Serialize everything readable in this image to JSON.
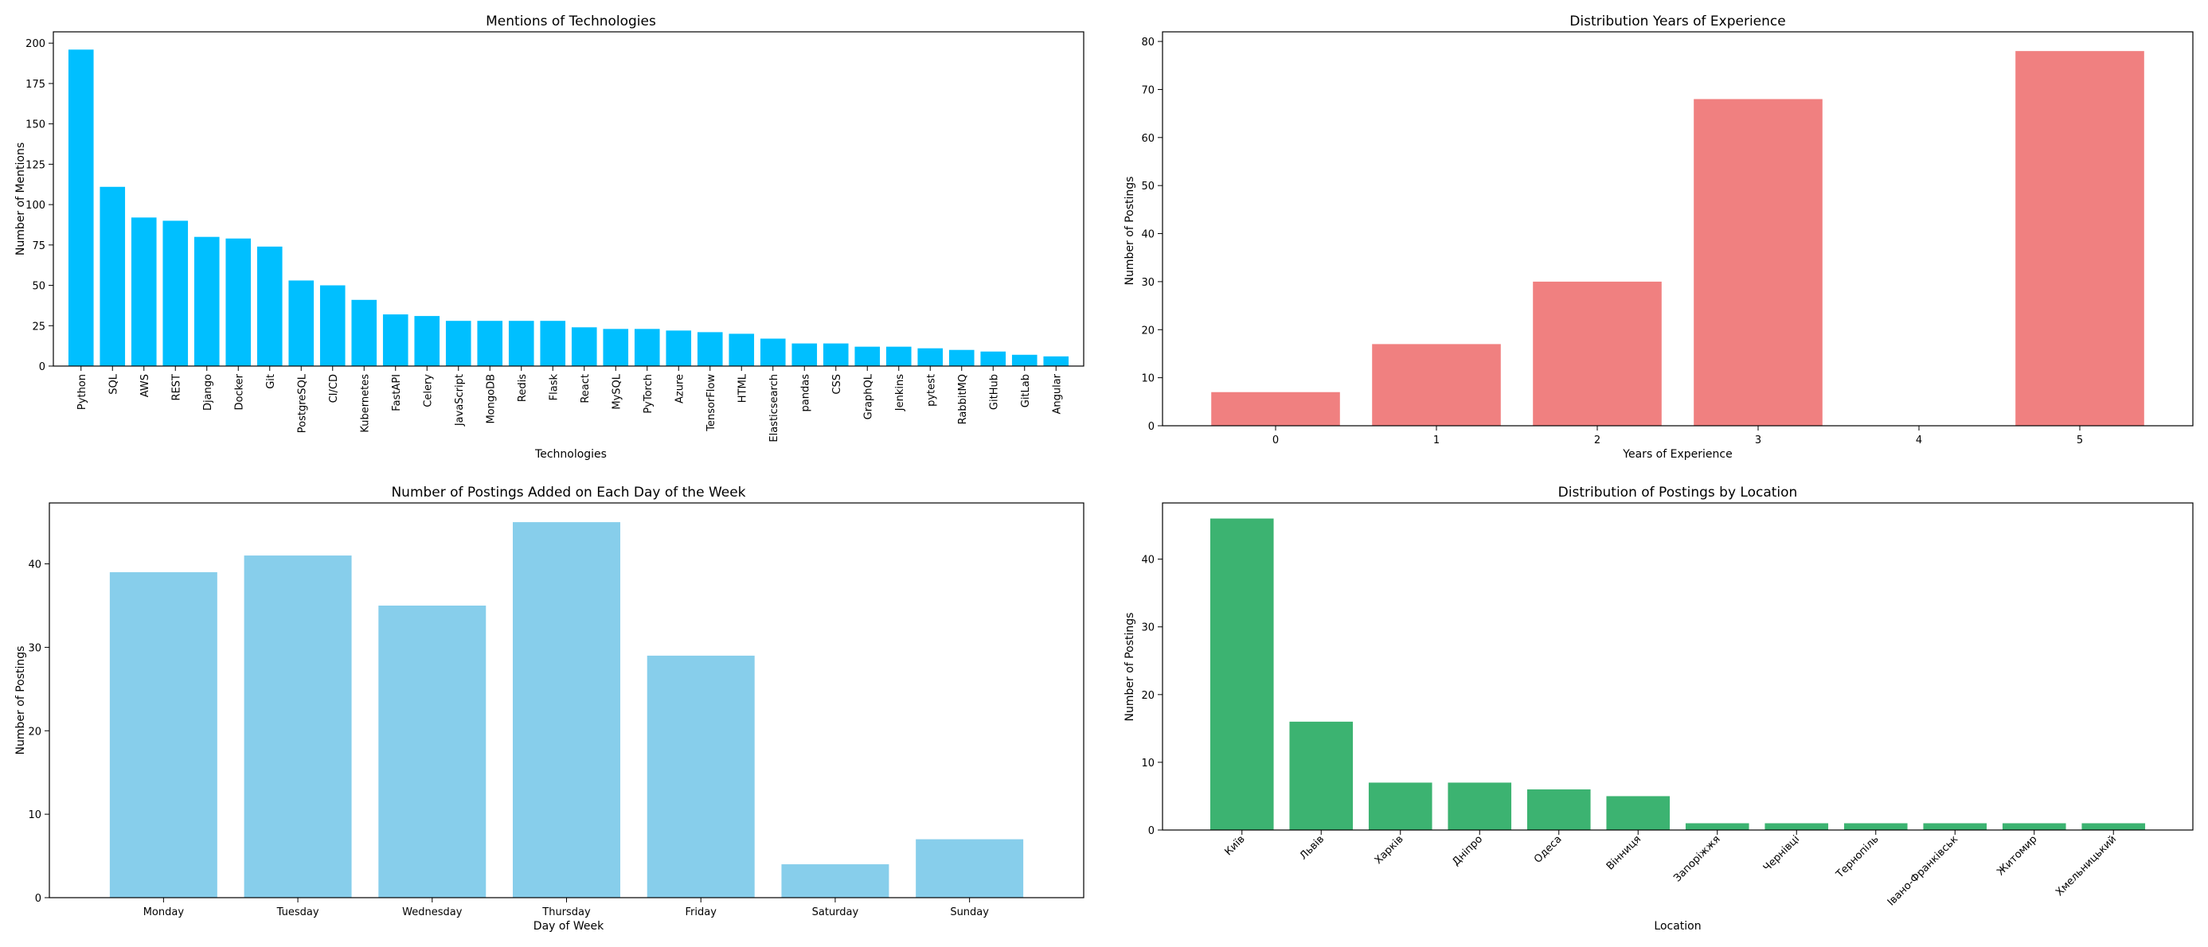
{
  "figure": {
    "chart_data": [
      {
        "type": "bar",
        "title": "Mentions of Technologies",
        "xlabel": "Technologies",
        "ylabel": "Number of Mentions",
        "ylim": [
          0,
          207
        ],
        "yticks": [
          0,
          25,
          50,
          75,
          100,
          125,
          150,
          175,
          200
        ],
        "color": "#00bfff",
        "xtick_rotation": 90,
        "categories": [
          "Python",
          "SQL",
          "AWS",
          "REST",
          "Django",
          "Docker",
          "Git",
          "PostgreSQL",
          "CI/CD",
          "Kubernetes",
          "FastAPI",
          "Celery",
          "JavaScript",
          "MongoDB",
          "Redis",
          "Flask",
          "React",
          "MySQL",
          "PyTorch",
          "Azure",
          "TensorFlow",
          "HTML",
          "Elasticsearch",
          "pandas",
          "CSS",
          "GraphQL",
          "Jenkins",
          "pytest",
          "RabbitMQ",
          "GitHub",
          "GitLab",
          "Angular"
        ],
        "values": [
          196,
          111,
          92,
          90,
          80,
          79,
          74,
          53,
          50,
          41,
          32,
          31,
          28,
          28,
          28,
          28,
          24,
          23,
          23,
          22,
          21,
          20,
          17,
          14,
          14,
          12,
          12,
          11,
          10,
          9,
          7,
          6
        ]
      },
      {
        "type": "bar",
        "title": "Distribution Years of Experience",
        "xlabel": "Years of Experience",
        "ylabel": "Number of Postings",
        "ylim": [
          0,
          82
        ],
        "yticks": [
          0,
          10,
          20,
          30,
          40,
          50,
          60,
          70,
          80
        ],
        "color": "#f08080",
        "xtick_rotation": 0,
        "categories": [
          "0",
          "1",
          "2",
          "3",
          "4",
          "5"
        ],
        "values": [
          7,
          17,
          30,
          68,
          0,
          78
        ]
      },
      {
        "type": "bar",
        "title": "Number of Postings Added on Each Day of the Week",
        "xlabel": "Day of Week",
        "ylabel": "Number of Postings",
        "ylim": [
          0,
          47.3
        ],
        "yticks": [
          0,
          10,
          20,
          30,
          40
        ],
        "color": "#87ceeb",
        "xtick_rotation": 0,
        "categories": [
          "Monday",
          "Tuesday",
          "Wednesday",
          "Thursday",
          "Friday",
          "Saturday",
          "Sunday"
        ],
        "values": [
          39,
          41,
          35,
          45,
          29,
          4,
          7
        ]
      },
      {
        "type": "bar",
        "title": "Distribution of Postings by Location",
        "xlabel": "Location",
        "ylabel": "Number of Postings",
        "ylim": [
          0,
          48.3
        ],
        "yticks": [
          0,
          10,
          20,
          30,
          40
        ],
        "color": "#3cb371",
        "xtick_rotation": 45,
        "categories": [
          "Київ",
          "Львів",
          "Харків",
          "Дніпро",
          "Одеса",
          "Вінниця",
          "Запоріжжя",
          "Чернівці",
          "Тернопіль",
          "Івано-Франківськ",
          "Житомир",
          "Хмельницький"
        ],
        "values": [
          46,
          16,
          7,
          7,
          6,
          5,
          1,
          1,
          1,
          1,
          1,
          1
        ]
      }
    ]
  }
}
